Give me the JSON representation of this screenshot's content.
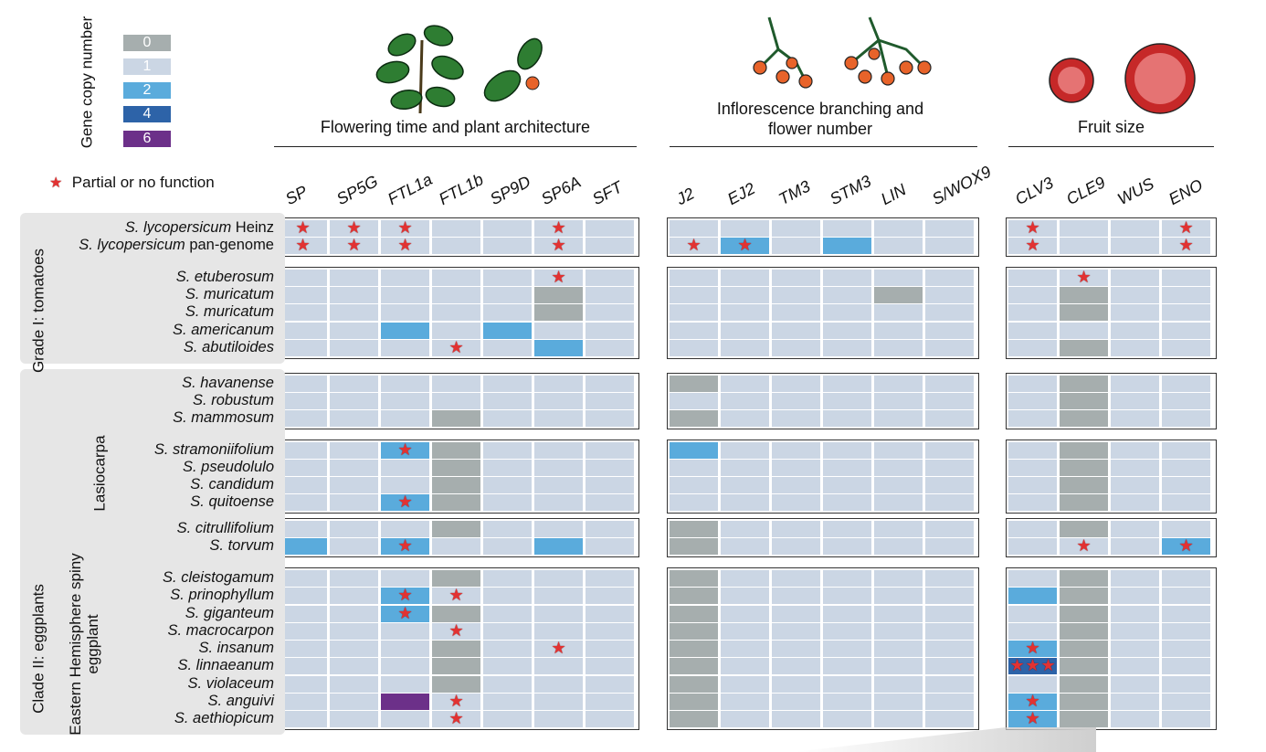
{
  "legend": {
    "title": "Gene copy number",
    "items": [
      {
        "label": "0",
        "color": "#a6aeae"
      },
      {
        "label": "1",
        "color": "#cbd6e4"
      },
      {
        "label": "2",
        "color": "#5aabdc"
      },
      {
        "label": "4",
        "color": "#2d63a8"
      },
      {
        "label": "6",
        "color": "#6c3089"
      }
    ],
    "star_label": "Partial or no function",
    "star_color": "#e23232"
  },
  "sections": [
    {
      "title": "Flowering time and plant architecture",
      "genes": [
        "SP",
        "SP5G",
        "FTL1a",
        "FTL1b",
        "SP9D",
        "SP6A",
        "SFT"
      ]
    },
    {
      "title": "Inflorescence branching and flower number",
      "genes": [
        "J2",
        "EJ2",
        "TM3",
        "STM3",
        "LIN",
        "S/WOX9"
      ]
    },
    {
      "title": "Fruit size",
      "genes": [
        "CLV3",
        "CLE9",
        "WUS",
        "ENO"
      ]
    }
  ],
  "groups": [
    {
      "name": "Grade I: tomatoes"
    },
    {
      "name": "Clade II: eggplants"
    },
    {
      "name": "Lasiocarpa"
    },
    {
      "name": "Eastern Hemisphere spiny eggplant"
    }
  ],
  "species": [
    {
      "name": "S. lycopersicum",
      "suffix": " Heinz"
    },
    {
      "name": "S. lycopersicum",
      "suffix": " pan-genome"
    },
    {
      "name": "S. etuberosum",
      "suffix": ""
    },
    {
      "name": "S. muricatum",
      "suffix": ""
    },
    {
      "name": "S. muricatum",
      "suffix": ""
    },
    {
      "name": "S. americanum",
      "suffix": ""
    },
    {
      "name": "S. abutiloides",
      "suffix": ""
    },
    {
      "name": "S. havanense",
      "suffix": ""
    },
    {
      "name": "S. robustum",
      "suffix": ""
    },
    {
      "name": "S. mammosum",
      "suffix": ""
    },
    {
      "name": "S. stramoniifolium",
      "suffix": ""
    },
    {
      "name": "S. pseudolulo",
      "suffix": ""
    },
    {
      "name": "S. candidum",
      "suffix": ""
    },
    {
      "name": "S. quitoense",
      "suffix": ""
    },
    {
      "name": "S. citrullifolium",
      "suffix": ""
    },
    {
      "name": "S. torvum",
      "suffix": ""
    },
    {
      "name": "S. cleistogamum",
      "suffix": ""
    },
    {
      "name": "S. prinophyllum",
      "suffix": ""
    },
    {
      "name": "S. giganteum",
      "suffix": ""
    },
    {
      "name": "S. macrocarpon",
      "suffix": ""
    },
    {
      "name": "S. insanum",
      "suffix": ""
    },
    {
      "name": "S. linnaeanum",
      "suffix": ""
    },
    {
      "name": "S. violaceum",
      "suffix": ""
    },
    {
      "name": "S. anguivi",
      "suffix": ""
    },
    {
      "name": "S. aethiopicum",
      "suffix": ""
    }
  ],
  "matrix": [
    {
      "cn": [
        1,
        1,
        1,
        1,
        1,
        1,
        1,
        1,
        1,
        1,
        1,
        1,
        1,
        1,
        1,
        1,
        1
      ],
      "stars": [
        [
          0,
          1
        ],
        [
          1,
          1
        ],
        [
          2,
          1
        ],
        [
          5,
          1
        ],
        [
          13,
          1
        ],
        [
          16,
          1
        ]
      ]
    },
    {
      "cn": [
        1,
        1,
        1,
        1,
        1,
        1,
        1,
        1,
        2,
        1,
        2,
        1,
        1,
        1,
        1,
        1,
        1
      ],
      "stars": [
        [
          0,
          1
        ],
        [
          1,
          1
        ],
        [
          2,
          1
        ],
        [
          5,
          1
        ],
        [
          7,
          1
        ],
        [
          8,
          1
        ],
        [
          13,
          1
        ],
        [
          16,
          1
        ]
      ]
    },
    {
      "cn": [
        1,
        1,
        1,
        1,
        1,
        1,
        1,
        1,
        1,
        1,
        1,
        1,
        1,
        1,
        1,
        1,
        1
      ],
      "stars": [
        [
          5,
          1
        ],
        [
          14,
          1
        ]
      ]
    },
    {
      "cn": [
        1,
        1,
        1,
        1,
        1,
        0,
        1,
        1,
        1,
        1,
        1,
        0,
        1,
        1,
        0,
        1,
        1
      ],
      "stars": []
    },
    {
      "cn": [
        1,
        1,
        1,
        1,
        1,
        0,
        1,
        1,
        1,
        1,
        1,
        1,
        1,
        1,
        0,
        1,
        1
      ],
      "stars": []
    },
    {
      "cn": [
        1,
        1,
        2,
        1,
        2,
        1,
        1,
        1,
        1,
        1,
        1,
        1,
        1,
        1,
        1,
        1,
        1
      ],
      "stars": []
    },
    {
      "cn": [
        1,
        1,
        1,
        1,
        1,
        2,
        1,
        1,
        1,
        1,
        1,
        1,
        1,
        1,
        0,
        1,
        1
      ],
      "stars": [
        [
          3,
          1
        ]
      ]
    },
    {
      "cn": [
        1,
        1,
        1,
        1,
        1,
        1,
        1,
        0,
        1,
        1,
        1,
        1,
        1,
        1,
        0,
        1,
        1
      ],
      "stars": []
    },
    {
      "cn": [
        1,
        1,
        1,
        1,
        1,
        1,
        1,
        1,
        1,
        1,
        1,
        1,
        1,
        1,
        0,
        1,
        1
      ],
      "stars": []
    },
    {
      "cn": [
        1,
        1,
        1,
        0,
        1,
        1,
        1,
        0,
        1,
        1,
        1,
        1,
        1,
        1,
        0,
        1,
        1
      ],
      "stars": []
    },
    {
      "cn": [
        1,
        1,
        2,
        0,
        1,
        1,
        1,
        2,
        1,
        1,
        1,
        1,
        1,
        1,
        0,
        1,
        1
      ],
      "stars": [
        [
          2,
          1
        ]
      ]
    },
    {
      "cn": [
        1,
        1,
        1,
        0,
        1,
        1,
        1,
        1,
        1,
        1,
        1,
        1,
        1,
        1,
        0,
        1,
        1
      ],
      "stars": []
    },
    {
      "cn": [
        1,
        1,
        1,
        0,
        1,
        1,
        1,
        1,
        1,
        1,
        1,
        1,
        1,
        1,
        0,
        1,
        1
      ],
      "stars": []
    },
    {
      "cn": [
        1,
        1,
        2,
        0,
        1,
        1,
        1,
        1,
        1,
        1,
        1,
        1,
        1,
        1,
        0,
        1,
        1
      ],
      "stars": [
        [
          2,
          1
        ]
      ]
    },
    {
      "cn": [
        1,
        1,
        1,
        0,
        1,
        1,
        1,
        0,
        1,
        1,
        1,
        1,
        1,
        1,
        0,
        1,
        1
      ],
      "stars": []
    },
    {
      "cn": [
        2,
        1,
        2,
        1,
        1,
        2,
        1,
        0,
        1,
        1,
        1,
        1,
        1,
        1,
        1,
        1,
        2
      ],
      "stars": [
        [
          2,
          1
        ],
        [
          14,
          1
        ],
        [
          16,
          1
        ]
      ]
    },
    {
      "cn": [
        1,
        1,
        1,
        0,
        1,
        1,
        1,
        0,
        1,
        1,
        1,
        1,
        1,
        1,
        0,
        1,
        1
      ],
      "stars": []
    },
    {
      "cn": [
        1,
        1,
        2,
        1,
        1,
        1,
        1,
        0,
        1,
        1,
        1,
        1,
        1,
        2,
        0,
        1,
        1
      ],
      "stars": [
        [
          2,
          1
        ],
        [
          3,
          1
        ]
      ]
    },
    {
      "cn": [
        1,
        1,
        2,
        0,
        1,
        1,
        1,
        0,
        1,
        1,
        1,
        1,
        1,
        1,
        0,
        1,
        1
      ],
      "stars": [
        [
          2,
          1
        ]
      ]
    },
    {
      "cn": [
        1,
        1,
        1,
        1,
        1,
        1,
        1,
        0,
        1,
        1,
        1,
        1,
        1,
        1,
        0,
        1,
        1
      ],
      "stars": [
        [
          3,
          1
        ]
      ]
    },
    {
      "cn": [
        1,
        1,
        1,
        0,
        1,
        1,
        1,
        0,
        1,
        1,
        1,
        1,
        1,
        2,
        0,
        1,
        1
      ],
      "stars": [
        [
          5,
          1
        ],
        [
          13,
          1
        ]
      ]
    },
    {
      "cn": [
        1,
        1,
        1,
        0,
        1,
        1,
        1,
        0,
        1,
        1,
        1,
        1,
        1,
        4,
        0,
        1,
        1
      ],
      "stars": [
        [
          13,
          3
        ]
      ]
    },
    {
      "cn": [
        1,
        1,
        1,
        0,
        1,
        1,
        1,
        0,
        1,
        1,
        1,
        1,
        1,
        1,
        0,
        1,
        1
      ],
      "stars": []
    },
    {
      "cn": [
        1,
        1,
        6,
        1,
        1,
        1,
        1,
        0,
        1,
        1,
        1,
        1,
        1,
        2,
        0,
        1,
        1
      ],
      "stars": [
        [
          3,
          1
        ],
        [
          13,
          1
        ]
      ]
    },
    {
      "cn": [
        1,
        1,
        1,
        1,
        1,
        1,
        1,
        0,
        1,
        1,
        1,
        1,
        1,
        2,
        0,
        1,
        1
      ],
      "stars": [
        [
          3,
          1
        ],
        [
          13,
          1
        ]
      ]
    }
  ]
}
